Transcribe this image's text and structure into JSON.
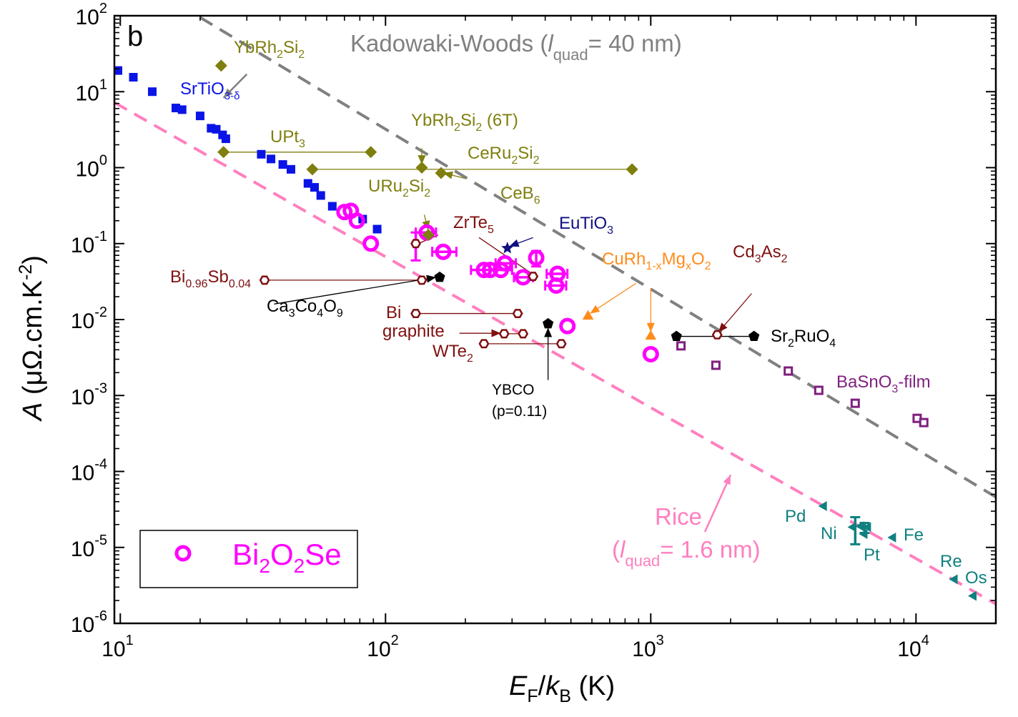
{
  "chart_data": {
    "type": "scatter",
    "panel_label": "b",
    "xlabel": {
      "main": "E",
      "sub": "F",
      "slash": "/",
      "main2": "k",
      "sub2": "B",
      "unit": " (K)"
    },
    "ylabel": {
      "main": "A",
      "unit": " (μΩ.cm.K",
      "exp": "-2",
      "close": ")"
    },
    "x_scale": "log",
    "y_scale": "log",
    "xlim": [
      9.5,
      20000
    ],
    "ylim": [
      1e-06,
      100
    ],
    "x_ticks": [
      {
        "base": "10",
        "exp": "1",
        "v": 10
      },
      {
        "base": "10",
        "exp": "2",
        "v": 100
      },
      {
        "base": "10",
        "exp": "3",
        "v": 1000
      },
      {
        "base": "10",
        "exp": "4",
        "v": 10000
      }
    ],
    "y_ticks": [
      {
        "base": "10",
        "exp": "-6",
        "v": 1e-06
      },
      {
        "base": "10",
        "exp": "-5",
        "v": 1e-05
      },
      {
        "base": "10",
        "exp": "-4",
        "v": 0.0001
      },
      {
        "base": "10",
        "exp": "-3",
        "v": 0.001
      },
      {
        "base": "10",
        "exp": "-2",
        "v": 0.01
      },
      {
        "base": "10",
        "exp": "-1",
        "v": 0.1
      },
      {
        "base": "10",
        "exp": "0",
        "v": 1
      },
      {
        "base": "10",
        "exp": "1",
        "v": 10
      },
      {
        "base": "10",
        "exp": "2",
        "v": 100
      }
    ],
    "colors": {
      "blue": "#0a14e6",
      "olive": "#7f7f10",
      "magenta": "#ff00ff",
      "darkred": "#7f1010",
      "black": "#000000",
      "navy": "#101080",
      "orange": "#ff8c1a",
      "purple": "#7f1f7f",
      "teal": "#108080",
      "gray": "#808080",
      "pink": "#ff7fbf"
    },
    "lines": [
      {
        "id": "kadowaki-woods-line",
        "points": [
          [
            20,
            95
          ],
          [
            20000,
            4.6e-05
          ]
        ],
        "color": "#808080"
      },
      {
        "id": "rice-line",
        "points": [
          [
            9.5,
            7.2
          ],
          [
            20000,
            1.8e-06
          ]
        ],
        "color": "#ff7fbf"
      }
    ],
    "legend": {
      "label": {
        "t1": "Bi",
        "s1": "2",
        "t2": "O",
        "s2": "2",
        "t3": "Se"
      },
      "position": "bottom-left"
    },
    "series": [
      {
        "id": "srtio3",
        "marker": "square",
        "color": "#0a14e6",
        "points": [
          [
            9.8,
            19
          ],
          [
            11.2,
            15.5
          ],
          [
            13.2,
            10
          ],
          [
            16.2,
            6.1
          ],
          [
            17.1,
            5.8
          ],
          [
            20.0,
            4.8
          ],
          [
            22.0,
            3.3
          ],
          [
            23.0,
            3.2
          ],
          [
            24.3,
            2.7
          ],
          [
            25.0,
            2.4
          ],
          [
            34.0,
            1.5
          ],
          [
            37.0,
            1.3
          ],
          [
            41.0,
            1.1
          ],
          [
            44.0,
            0.95
          ],
          [
            51.0,
            0.62
          ],
          [
            54.0,
            0.55
          ],
          [
            57.0,
            0.43
          ],
          [
            63.0,
            0.31
          ],
          [
            82.0,
            0.21
          ],
          [
            93.0,
            0.155
          ]
        ]
      },
      {
        "id": "bi2o2se",
        "marker": "ring",
        "color": "#ff00ff",
        "points": [
          [
            70,
            0.26
          ],
          [
            74,
            0.27
          ],
          [
            78,
            0.2
          ],
          [
            88,
            0.1
          ],
          [
            143,
            0.14
          ],
          [
            165,
            0.078
          ],
          [
            235,
            0.045
          ],
          [
            248,
            0.045
          ],
          [
            272,
            0.045
          ],
          [
            282,
            0.055
          ],
          [
            330,
            0.036
          ],
          [
            370,
            0.065
          ],
          [
            440,
            0.028
          ],
          [
            445,
            0.04
          ],
          [
            485,
            0.0082
          ],
          [
            1000,
            0.0035
          ]
        ]
      },
      {
        "id": "bi2o2se-errorbars",
        "kind": "errorbar",
        "color": "#ff00ff",
        "bars": [
          {
            "x": 130,
            "y": 0.1,
            "ylo": 0.06,
            "yhi": 0.14
          },
          {
            "x": 143,
            "y": 0.14,
            "xlo": 130,
            "xhi": 155
          },
          {
            "x": 165,
            "y": 0.078,
            "xlo": 150,
            "xhi": 185
          },
          {
            "x": 248,
            "y": 0.045,
            "xlo": 210,
            "xhi": 300
          },
          {
            "x": 282,
            "y": 0.055,
            "xlo": 260,
            "xhi": 310
          },
          {
            "x": 330,
            "y": 0.036,
            "xlo": 305,
            "xhi": 360
          },
          {
            "x": 370,
            "y": 0.065,
            "ylo": 0.05,
            "yhi": 0.08
          },
          {
            "x": 440,
            "y": 0.028,
            "xlo": 400,
            "xhi": 480
          },
          {
            "x": 445,
            "y": 0.04,
            "xlo": 405,
            "xhi": 485
          }
        ]
      },
      {
        "id": "heavy-fermion",
        "marker": "diamond",
        "color": "#7f7f10",
        "points": [
          [
            24,
            22
          ],
          [
            24.5,
            1.6
          ],
          [
            88,
            1.6
          ],
          [
            53,
            0.95
          ],
          [
            137,
            1.0
          ],
          [
            162,
            0.85
          ],
          [
            850,
            0.95
          ],
          [
            145,
            0.13
          ]
        ]
      },
      {
        "id": "semimetals",
        "marker": "hexagon",
        "color": "#7f1010",
        "points": [
          [
            35,
            0.033
          ],
          [
            130,
            0.1
          ],
          [
            137,
            0.033
          ],
          [
            360,
            0.037
          ],
          [
            130,
            0.012
          ],
          [
            315,
            0.012
          ],
          [
            280,
            0.0065
          ],
          [
            330,
            0.0065
          ],
          [
            235,
            0.0048
          ],
          [
            460,
            0.0048
          ],
          [
            1780,
            0.0063
          ]
        ]
      },
      {
        "id": "black-pentagons",
        "marker": "pentagon",
        "color": "#000000",
        "points": [
          [
            160,
            0.036
          ],
          [
            410,
            0.0088
          ],
          [
            1250,
            0.006
          ],
          [
            2450,
            0.006
          ]
        ]
      },
      {
        "id": "eutio3",
        "marker": "star",
        "color": "#101080",
        "points": [
          [
            288,
            0.087
          ]
        ]
      },
      {
        "id": "curhmgo2",
        "marker": "triangle-up",
        "color": "#ff8c1a",
        "points": [
          [
            580,
            0.011
          ],
          [
            1000,
            0.006
          ]
        ]
      },
      {
        "id": "basno3",
        "marker": "square-open",
        "color": "#7f1f7f",
        "points": [
          [
            1300,
            0.0045
          ],
          [
            1760,
            0.0025
          ],
          [
            3300,
            0.0021
          ],
          [
            4300,
            0.00117
          ],
          [
            5900,
            0.00079
          ],
          [
            10100,
            0.0005
          ],
          [
            10700,
            0.00044
          ]
        ]
      },
      {
        "id": "metals",
        "marker": "triangle-left",
        "color": "#108080",
        "points": [
          [
            4500,
            3.5e-05
          ],
          [
            5800,
            1.85e-05
          ],
          [
            6200,
            1.9e-05
          ],
          [
            6600,
            1.85e-05
          ],
          [
            6400,
            1.5e-05
          ],
          [
            8200,
            1.35e-05
          ],
          [
            14000,
            3.8e-06
          ],
          [
            16500,
            2.3e-06
          ]
        ]
      },
      {
        "id": "metals-errorbars",
        "kind": "errorbar",
        "color": "#108080",
        "bars": [
          {
            "x": 5900,
            "y": 1.7e-05,
            "ylo": 1.1e-05,
            "yhi": 2.5e-05
          },
          {
            "x": 6400,
            "y": 1.75e-05,
            "ylo": 1.55e-05,
            "yhi": 2.1e-05
          }
        ]
      }
    ],
    "connectors": [
      {
        "color": "#7f7f10",
        "points": [
          [
            24.5,
            1.6
          ],
          [
            88,
            1.6
          ]
        ]
      },
      {
        "color": "#7f7f10",
        "points": [
          [
            53,
            0.95
          ],
          [
            850,
            0.95
          ]
        ]
      },
      {
        "color": "#7f1010",
        "points": [
          [
            35,
            0.033
          ],
          [
            137,
            0.033
          ]
        ]
      },
      {
        "color": "#7f1010",
        "points": [
          [
            130,
            0.012
          ],
          [
            315,
            0.012
          ]
        ]
      },
      {
        "color": "#7f1010",
        "points": [
          [
            235,
            0.0048
          ],
          [
            460,
            0.0048
          ]
        ]
      },
      {
        "color": "#000000",
        "points": [
          [
            1250,
            0.006
          ],
          [
            2450,
            0.006
          ]
        ]
      },
      {
        "color": "#7f1010",
        "points": [
          [
            280,
            0.0065
          ],
          [
            330,
            0.0065
          ]
        ]
      }
    ],
    "arrows": [
      {
        "color": "#808080",
        "from": [
          30,
          17
        ],
        "to": [
          24.5,
          8.3
        ],
        "head": true
      },
      {
        "color": "#7f7f10",
        "from": [
          137,
          1.8
        ],
        "to": [
          137,
          1.1
        ],
        "head": true
      },
      {
        "color": "#7f7f10",
        "from": [
          200,
          0.72
        ],
        "to": [
          165,
          0.85
        ],
        "head": true
      },
      {
        "color": "#7f7f10",
        "from": [
          140,
          0.24
        ],
        "to": [
          145,
          0.15
        ],
        "head": true
      },
      {
        "color": "#7f1010",
        "from": [
          158,
          0.13
        ],
        "to": [
          133,
          0.1
        ],
        "head": false
      },
      {
        "color": "#7f1010",
        "from": [
          225,
          0.12
        ],
        "to": [
          350,
          0.042
        ],
        "head": false
      },
      {
        "color": "#101080",
        "from": [
          360,
          0.12
        ],
        "to": [
          293,
          0.092
        ],
        "head": true
      },
      {
        "color": "#ff8c1a",
        "from": [
          880,
          0.03
        ],
        "to": [
          590,
          0.012
        ],
        "head": true
      },
      {
        "color": "#ff8c1a",
        "from": [
          1000,
          0.026
        ],
        "to": [
          1000,
          0.0068
        ],
        "head": true
      },
      {
        "color": "#7f1010",
        "from": [
          2400,
          0.022
        ],
        "to": [
          1800,
          0.0068
        ],
        "head": true
      },
      {
        "color": "#000000",
        "from": [
          38,
          0.016
        ],
        "to": [
          155,
          0.036
        ],
        "head": true
      },
      {
        "color": "#7f1010",
        "from": [
          190,
          0.0066
        ],
        "to": [
          272,
          0.0066
        ],
        "head": true
      },
      {
        "color": "#000000",
        "from": [
          410,
          0.0016
        ],
        "to": [
          410,
          0.0078
        ],
        "head": true
      },
      {
        "color": "#ff7fbf",
        "from": [
          1600,
          1.6e-05
        ],
        "to": [
          2000,
          9e-05
        ],
        "head": true
      }
    ],
    "labels": {
      "kadowaki_woods": {
        "t1": "Kadowaki-Woods  (",
        "it": "l",
        "sub": "quad",
        "t2": "= 40 nm)"
      },
      "rice_title": "Rice",
      "rice_value": {
        "t1": "(",
        "it": "l",
        "sub": "quad",
        "t2": "= 1.6 nm)"
      },
      "ybrh2si2": {
        "t1": "YbRh",
        "s1": "2",
        "t2": "Si",
        "s2": "2"
      },
      "ybrh2si2_6t": {
        "t1": "YbRh",
        "s1": "2",
        "t2": "Si",
        "s2": "2",
        "t3": " (6T)"
      },
      "srtio3": {
        "t1": "SrTiO",
        "s1": "3-δ"
      },
      "upt3": {
        "t1": "UPt",
        "s1": "3"
      },
      "ceru2si2": {
        "t1": "CeRu",
        "s1": "2",
        "t2": "Si",
        "s2": "2"
      },
      "ceb6": {
        "t1": "CeB",
        "s1": "6"
      },
      "uru2si2": {
        "t1": "URu",
        "s1": "2",
        "t2": "Si",
        "s2": "2"
      },
      "zrte5": {
        "t1": "ZrTe",
        "s1": "5"
      },
      "eutio3": {
        "t1": "EuTiO",
        "s1": "3"
      },
      "curhmgo2": {
        "t1": "CuRh",
        "s1": "1-x",
        "t2": "Mg",
        "s2": "x",
        "t3": "O",
        "s3": "2"
      },
      "cd3as2": {
        "t1": "Cd",
        "s1": "3",
        "t2": "As",
        "s2": "2"
      },
      "bisb": {
        "t1": "Bi",
        "s1": "0.96",
        "t2": "Sb",
        "s2": "0.04"
      },
      "ca3co4o9": {
        "t1": "Ca",
        "s1": "3",
        "t2": "Co",
        "s2": "4",
        "t3": "O",
        "s3": "9"
      },
      "bi": "Bi",
      "graphite": "graphite",
      "wte2": {
        "t1": "WTe",
        "s1": "2"
      },
      "ybco": "YBCO",
      "ybco_p": "(p=0.11)",
      "sr2ruo4": {
        "t1": "Sr",
        "s1": "2",
        "t2": "RuO",
        "s2": "4"
      },
      "basno3": {
        "t1": "BaSnO",
        "s1": "3",
        "t2": "-film"
      },
      "pd": "Pd",
      "ni": "Ni",
      "pt": "Pt",
      "fe": "Fe",
      "re": "Re",
      "os": "Os"
    }
  }
}
